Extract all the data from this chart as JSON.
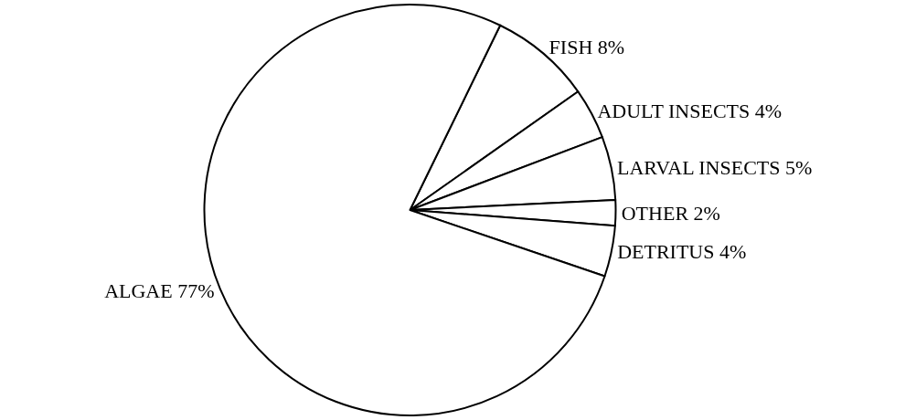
{
  "chart_data": {
    "type": "pie",
    "categories": [
      "FISH",
      "ADULT INSECTS",
      "LARVAL INSECTS",
      "OTHER",
      "DETRITUS",
      "ALGAE"
    ],
    "values": [
      8,
      4,
      5,
      2,
      4,
      77
    ],
    "value_labels": [
      "8%",
      "4%",
      "5%",
      "2%",
      "4%",
      "77%"
    ],
    "colors": [
      "#ffffff",
      "#ffffff",
      "#ffffff",
      "#ffffff",
      "#ffffff",
      "#ffffff"
    ],
    "legend": false
  }
}
